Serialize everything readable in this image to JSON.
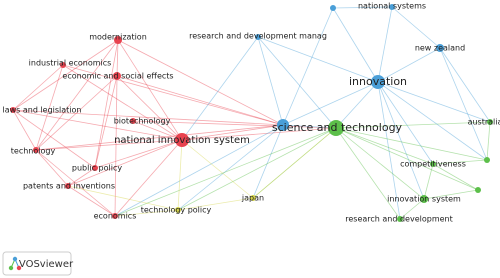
{
  "nodes": [
    {
      "label": "modernization",
      "color": "#e8434f"
    },
    {
      "label": "industrial economics",
      "color": "#e8434f"
    },
    {
      "label": "economic and social effects",
      "color": "#e8434f"
    },
    {
      "label": "laws and legislation",
      "color": "#e8434f"
    },
    {
      "label": "biotechnology",
      "color": "#e8434f"
    },
    {
      "label": "national innovation system",
      "color": "#e8434f"
    },
    {
      "label": "technology",
      "color": "#e8434f"
    },
    {
      "label": "public policy",
      "color": "#e8434f"
    },
    {
      "label": "patents and inventions",
      "color": "#e8434f"
    },
    {
      "label": "economics",
      "color": "#e8434f"
    },
    {
      "label": "research and development manag",
      "color": "#4a9fd8"
    },
    {
      "label": "national systems",
      "color": "#4a9fd8"
    },
    {
      "label": "new zealand",
      "color": "#4a9fd8"
    },
    {
      "label": "innovation",
      "color": "#4a9fd8"
    },
    {
      "label": "science and technology",
      "color": "#5cbf4a"
    },
    {
      "label": "australia",
      "color": "#5cbf4a"
    },
    {
      "label": "competitiveness",
      "color": "#5cbf4a"
    },
    {
      "label": "innovation system",
      "color": "#5cbf4a"
    },
    {
      "label": "research and development",
      "color": "#5cbf4a"
    },
    {
      "label": "technology policy",
      "color": "#d4d44a"
    },
    {
      "label": "japan",
      "color": "#d4d44a"
    }
  ],
  "logo": {
    "text": "VOSviewer"
  }
}
